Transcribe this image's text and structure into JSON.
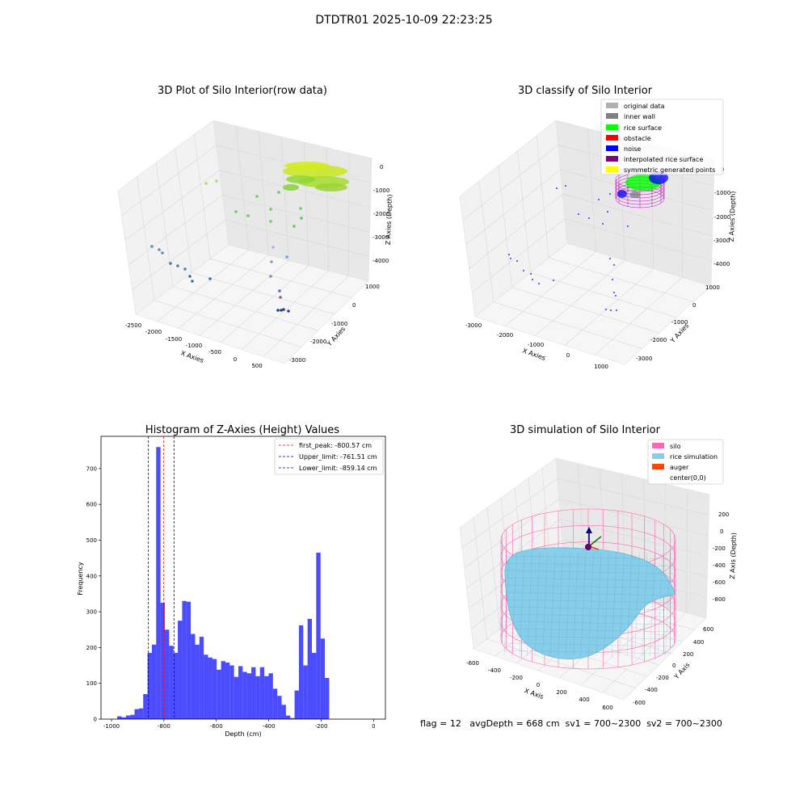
{
  "suptitle": "DTDTR01 2025-10-09 22:23:25",
  "footer": "flag = 12   avgDepth = 668 cm  sv1 = 700~2300  sv2 = 700~2300",
  "panels": {
    "raw": {
      "title": "3D Plot of Silo Interior(row data)",
      "xlabel": "X Axies",
      "ylabel": "Y Axies",
      "zlabel": "Z Axies (Depth)",
      "xticks": [
        "-2500",
        "-2000",
        "-1500",
        "-1000",
        "-500",
        "0",
        "500"
      ],
      "yticks": [
        "1000",
        "0",
        "-1000",
        "-2000",
        "-3000"
      ],
      "zticks": [
        "0",
        "-1000",
        "-2000",
        "-3000",
        "-4000"
      ]
    },
    "classify": {
      "title": "3D classify of Silo Interior",
      "xlabel": "X Axies",
      "ylabel": "Y Axies",
      "zlabel": "Z Axies (Depth)",
      "xticks": [
        "-3000",
        "-2000",
        "-1000",
        "0",
        "1000"
      ],
      "yticks": [
        "1000",
        "0",
        "-1000",
        "-2000",
        "-3000"
      ],
      "zticks": [
        "0",
        "-1000",
        "-2000",
        "-3000",
        "-4000"
      ],
      "legend": [
        {
          "label": "original data",
          "color": "#b0b0b0"
        },
        {
          "label": "inner wall",
          "color": "#808080"
        },
        {
          "label": "rice surface",
          "color": "#00ff00"
        },
        {
          "label": "obstacle",
          "color": "#ff0000"
        },
        {
          "label": "noise",
          "color": "#0000ff"
        },
        {
          "label": "interpolated rice surface",
          "color": "#800080"
        },
        {
          "label": "symmetric generated points",
          "color": "#ffff00"
        }
      ]
    },
    "sim": {
      "title": "3D simulation of Silo Interior",
      "xlabel": "X Axis",
      "ylabel": "Y Axis",
      "zlabel": "Z Axis (Depth)",
      "xticks": [
        "-600",
        "-400",
        "-200",
        "0",
        "200",
        "400",
        "600"
      ],
      "yticks": [
        "600",
        "400",
        "200",
        "0",
        "-200",
        "-400",
        "-600"
      ],
      "zticks": [
        "200",
        "0",
        "-200",
        "-400",
        "-600",
        "-800"
      ],
      "legend": [
        {
          "label": "silo",
          "color": "#ff69b4"
        },
        {
          "label": "rice simulation",
          "color": "#87ceeb"
        },
        {
          "label": "auger",
          "color": "#ff4500"
        },
        {
          "label": "center(0,0)",
          "color": ""
        }
      ]
    }
  },
  "chart_data": [
    {
      "type": "bar",
      "title": "Histogram of Z-Axies (Height) Values",
      "xlabel": "Depth (cm)",
      "ylabel": "Frequency",
      "xlim": [
        -1040,
        45
      ],
      "ylim": [
        0,
        790
      ],
      "xticks": [
        -1000,
        -800,
        -600,
        -400,
        -200,
        0
      ],
      "yticks": [
        0,
        100,
        200,
        300,
        400,
        500,
        600,
        700
      ],
      "bin_width": 16.5,
      "bin_start": -978,
      "values": [
        8,
        5,
        10,
        12,
        28,
        30,
        70,
        185,
        208,
        760,
        325,
        250,
        205,
        185,
        275,
        330,
        328,
        238,
        208,
        230,
        180,
        172,
        168,
        138,
        162,
        158,
        150,
        118,
        148,
        132,
        128,
        145,
        120,
        145,
        120,
        128,
        85,
        65,
        40,
        10,
        3,
        80,
        262,
        150,
        280,
        185,
        465,
        225,
        115
      ],
      "bar_color": "#0000ff",
      "vlines": [
        {
          "x": -800.57,
          "label": "first_peak: -800.57 cm",
          "color": "#ff0000"
        },
        {
          "x": -761.51,
          "label": "Upper_limit: -761.51 cm",
          "color": "#00008b"
        },
        {
          "x": -859.14,
          "label": "Lower_limit: -859.14 cm",
          "color": "#00008b"
        }
      ]
    }
  ]
}
